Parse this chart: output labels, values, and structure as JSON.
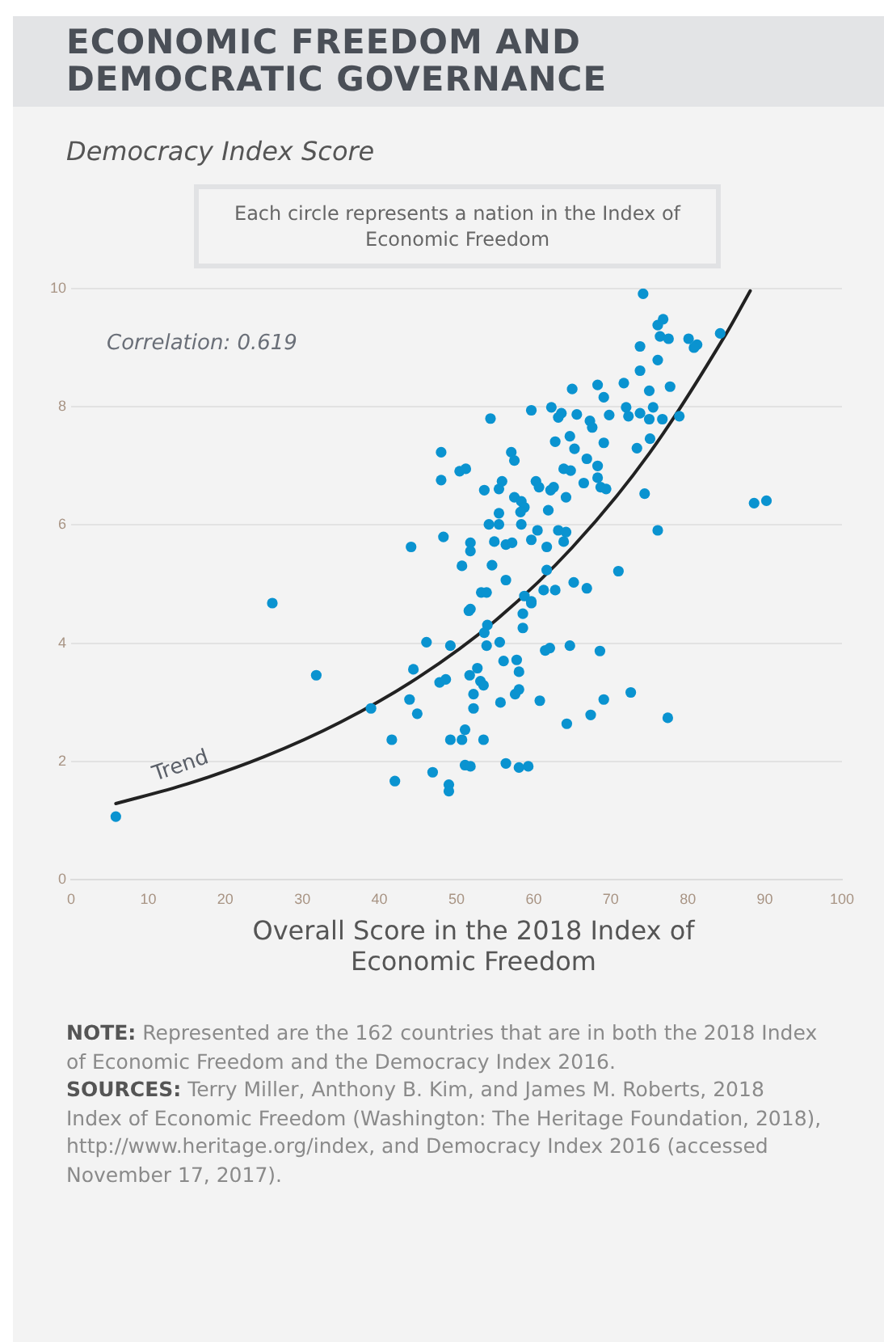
{
  "chart_data": {
    "type": "scatter",
    "title": "ECONOMIC FREEDOM AND DEMOCRATIC GOVERNANCE",
    "ylabel": "Democracy Index Score",
    "xlabel": "Overall Score in the 2018 Index of Economic Freedom",
    "xlim": [
      0,
      100
    ],
    "xticks": [
      0,
      10,
      20,
      30,
      40,
      50,
      60,
      70,
      80,
      90,
      100
    ],
    "ylim": [
      0,
      10
    ],
    "yticks": [
      0,
      2,
      4,
      6,
      8,
      10
    ],
    "grid": "y",
    "legend": false,
    "marker": "circle",
    "series": [
      {
        "color": "#0a93d0",
        "x": [
          74.2,
          76.8,
          76.1,
          76.4,
          77.5,
          80.1,
          81.2,
          80.8,
          84.2,
          73.8,
          76.1,
          73.8,
          65.0,
          68.3,
          71.7,
          75.0,
          77.7,
          69.1,
          54.4,
          59.7,
          62.3,
          63.6,
          63.2,
          65.6,
          67.3,
          67.6,
          69.8,
          72.0,
          72.3,
          73.8,
          75.5,
          75.0,
          76.7,
          78.9,
          62.8,
          64.7,
          69.1,
          75.1,
          73.4,
          65.3,
          48.0,
          57.1,
          57.5,
          50.4,
          51.2,
          48.0,
          66.9,
          68.3,
          63.9,
          64.8,
          66.5,
          68.3,
          68.7,
          69.4,
          60.3,
          60.7,
          62.2,
          62.6,
          64.2,
          53.6,
          55.5,
          55.9,
          57.5,
          58.4,
          58.8,
          58.3,
          55.5,
          61.9,
          74.4,
          88.6,
          90.2,
          76.1,
          71.0,
          48.3,
          44.1,
          54.2,
          55.5,
          58.4,
          60.5,
          63.2,
          64.2,
          51.8,
          51.8,
          54.9,
          56.4,
          57.2,
          59.7,
          61.7,
          63.9,
          50.7,
          54.6,
          61.7,
          56.4,
          53.2,
          53.9,
          61.3,
          62.8,
          65.2,
          66.9,
          58.8,
          59.7,
          51.8,
          51.6,
          54.0,
          53.6,
          58.6,
          58.6,
          59.7,
          46.1,
          49.2,
          53.9,
          55.6,
          64.7,
          68.6,
          61.5,
          62.1,
          44.4,
          51.7,
          52.7,
          56.1,
          57.8,
          58.1,
          47.8,
          48.6,
          53.1,
          53.5,
          52.2,
          58.1,
          57.6,
          55.7,
          60.8,
          69.1,
          72.6,
          43.9,
          44.9,
          52.2,
          64.3,
          67.4,
          77.4,
          49.2,
          50.7,
          51.1,
          53.5,
          41.6,
          51.1,
          51.8,
          56.4,
          58.1,
          59.3,
          46.9,
          42.0,
          49.0,
          49.0,
          5.8,
          26.1,
          31.8,
          38.9
        ],
        "values": [
          9.91,
          9.48,
          9.38,
          9.19,
          9.15,
          9.15,
          9.05,
          9.0,
          9.24,
          9.02,
          8.79,
          8.61,
          8.3,
          8.37,
          8.4,
          8.27,
          8.34,
          8.16,
          7.8,
          7.94,
          7.99,
          7.89,
          7.82,
          7.87,
          7.76,
          7.65,
          7.86,
          7.99,
          7.84,
          7.89,
          7.99,
          7.79,
          7.79,
          7.84,
          7.41,
          7.5,
          7.39,
          7.46,
          7.3,
          7.29,
          7.23,
          7.23,
          7.09,
          6.91,
          6.95,
          6.76,
          7.12,
          7.0,
          6.95,
          6.92,
          6.71,
          6.8,
          6.64,
          6.61,
          6.74,
          6.64,
          6.59,
          6.64,
          6.47,
          6.59,
          6.61,
          6.74,
          6.47,
          6.4,
          6.3,
          6.22,
          6.2,
          6.25,
          6.53,
          6.37,
          6.41,
          5.91,
          5.22,
          5.8,
          5.63,
          6.01,
          6.01,
          6.01,
          5.91,
          5.91,
          5.88,
          5.7,
          5.56,
          5.72,
          5.67,
          5.7,
          5.75,
          5.63,
          5.72,
          5.31,
          5.32,
          5.24,
          5.07,
          4.86,
          4.86,
          4.9,
          4.9,
          5.03,
          4.93,
          4.8,
          4.71,
          4.58,
          4.55,
          4.31,
          4.18,
          4.5,
          4.26,
          4.68,
          4.02,
          3.96,
          3.96,
          4.02,
          3.96,
          3.87,
          3.88,
          3.92,
          3.56,
          3.46,
          3.58,
          3.7,
          3.72,
          3.52,
          3.34,
          3.39,
          3.36,
          3.29,
          3.14,
          3.22,
          3.14,
          3.0,
          3.03,
          3.05,
          3.17,
          3.05,
          2.81,
          2.9,
          2.64,
          2.79,
          2.74,
          2.37,
          2.37,
          2.54,
          2.37,
          2.37,
          1.94,
          1.92,
          1.97,
          1.9,
          1.92,
          1.82,
          1.67,
          1.61,
          1.5,
          1.07,
          4.68,
          3.46,
          2.9
        ]
      },
      {
        "type": "line",
        "color": "#222222",
        "marker": "none",
        "x": [
          5.8,
          15,
          25,
          35,
          45,
          55,
          65,
          75,
          85,
          88.1
        ],
        "values": [
          1.29,
          1.62,
          2.08,
          2.67,
          3.42,
          4.38,
          5.62,
          7.21,
          9.24,
          9.96
        ]
      }
    ],
    "annotations": [
      "Each circle represents a nation in the Index of Economic Freedom",
      "Correlation: 0.619",
      {
        "text": "Trend",
        "x": 15,
        "y": 1.62
      },
      "NOTE: Represented are the 162 countries that are in both the 2018 Index of Economic Freedom and the Democracy Index 2016.",
      "SOURCES: Terry Miller, Anthony B. Kim, and James M. Roberts, 2018 Index of Economic Freedom (Washington: The Heritage Foundation, 2018), http://www.heritage.org/index, and Democracy Index 2016 (accessed November 17, 2017)."
    ]
  }
}
